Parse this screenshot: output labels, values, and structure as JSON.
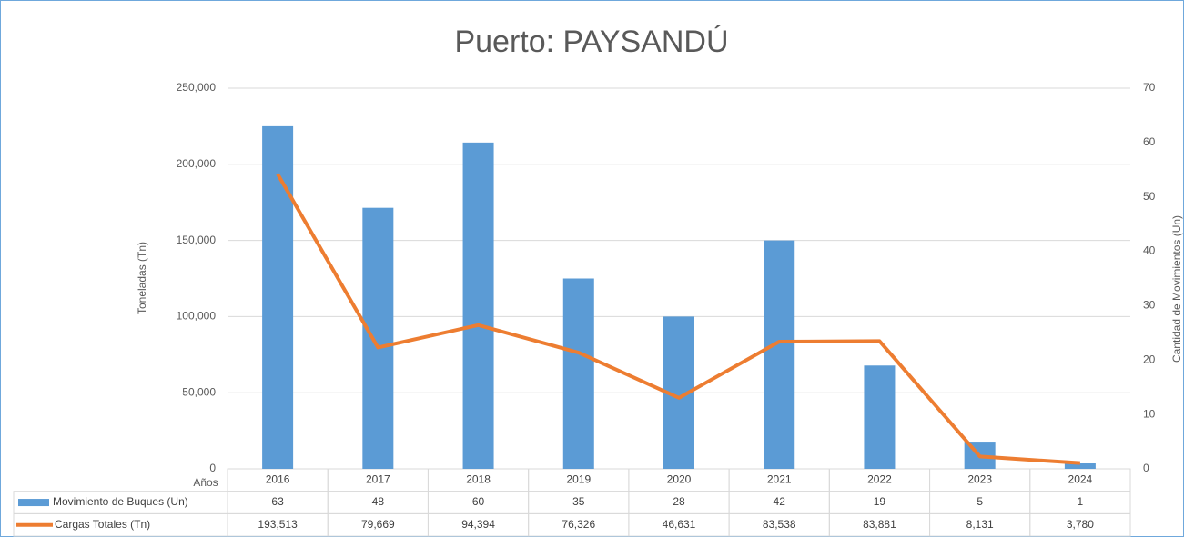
{
  "chart_data": {
    "type": "combo",
    "title": "Puerto: PAYSANDÚ",
    "x_label": "Años",
    "y_label": "Toneladas (Tn)",
    "y2_label": "Cantidad de Movimientos (Un)",
    "categories": [
      "2016",
      "2017",
      "2018",
      "2019",
      "2020",
      "2021",
      "2022",
      "2023",
      "2024"
    ],
    "series": [
      {
        "name": "Movimiento de Buques (Un)",
        "type": "bar",
        "axis": "y2",
        "color": "#5b9bd5",
        "values": [
          63,
          48,
          60,
          35,
          28,
          42,
          19,
          5,
          1
        ]
      },
      {
        "name": "Cargas Totales (Tn)",
        "type": "line",
        "axis": "y",
        "color": "#ed7d31",
        "values": [
          193513,
          79669,
          94394,
          76326,
          46631,
          83538,
          83881,
          8131,
          3780
        ],
        "value_labels": [
          "193,513",
          "79,669",
          "94,394",
          "76,326",
          "46,631",
          "83,538",
          "83,881",
          "8,131",
          "3,780"
        ]
      }
    ],
    "ylim": [
      0,
      250000
    ],
    "yticks": [
      0,
      {
        "value": 50000,
        "label": "50,000"
      },
      {
        "value": 100000,
        "label": "100,000"
      },
      {
        "value": 150000,
        "label": "150,000"
      },
      {
        "value": 200000,
        "label": "200,000"
      },
      {
        "value": 250000,
        "label": "250,000"
      }
    ],
    "y2lim": [
      0,
      70
    ],
    "y2ticks": [
      0,
      10,
      20,
      30,
      40,
      50,
      60,
      70
    ],
    "grid": true,
    "data_table": true
  }
}
